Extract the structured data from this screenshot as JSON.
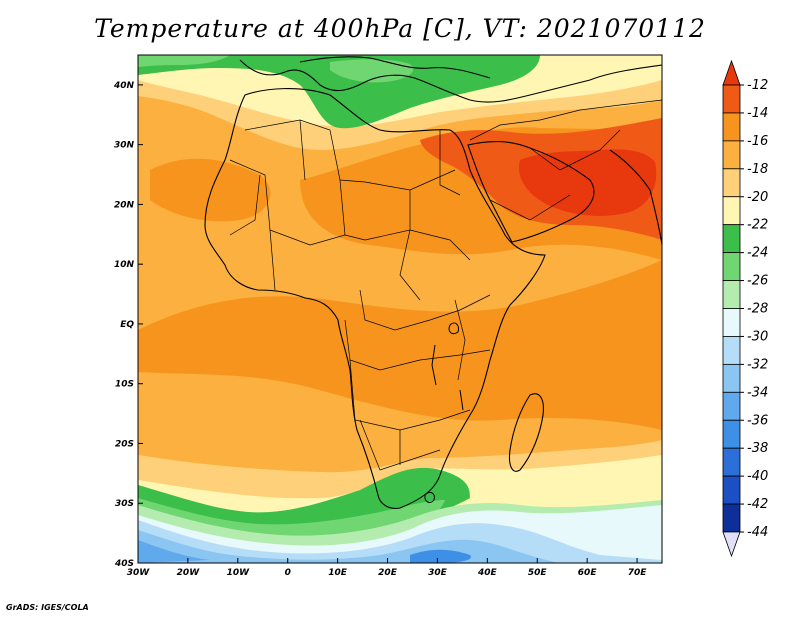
{
  "title": "Temperature at 400hPa [C], VT: 2021070112",
  "credit": "GrADS: IGES/COLA",
  "map": {
    "lon_range": [
      -30,
      75
    ],
    "lat_range": [
      -40,
      45
    ],
    "lat_ticks": [
      {
        "value": 40,
        "label": "40N"
      },
      {
        "value": 30,
        "label": "30N"
      },
      {
        "value": 20,
        "label": "20N"
      },
      {
        "value": 10,
        "label": "10N"
      },
      {
        "value": 0,
        "label": "EQ"
      },
      {
        "value": -10,
        "label": "10S"
      },
      {
        "value": -20,
        "label": "20S"
      },
      {
        "value": -30,
        "label": "30S"
      },
      {
        "value": -40,
        "label": "40S"
      }
    ],
    "lon_ticks": [
      {
        "value": -30,
        "label": "30W"
      },
      {
        "value": -20,
        "label": "20W"
      },
      {
        "value": -10,
        "label": "10W"
      },
      {
        "value": 0,
        "label": "0"
      },
      {
        "value": 10,
        "label": "10E"
      },
      {
        "value": 20,
        "label": "20E"
      },
      {
        "value": 30,
        "label": "30E"
      },
      {
        "value": 40,
        "label": "40E"
      },
      {
        "value": 50,
        "label": "50E"
      },
      {
        "value": 60,
        "label": "60E"
      },
      {
        "value": 70,
        "label": "70E"
      }
    ],
    "colors": {
      "ge_m12": "#e8380d",
      "m14_m12": "#f05a17",
      "m16_m14": "#f7941d",
      "m18_m16": "#fbb040",
      "m20_m18": "#fed07a",
      "m22_m20": "#fff6b3",
      "m24_m22": "#3cbe4a",
      "m26_m24": "#6fd672",
      "m28_m26": "#b4ecb0",
      "m30_m28": "#e8f9fb",
      "m32_m30": "#b6ddf8",
      "m34_m32": "#8bc6f3",
      "m36_m34": "#5fa9ec",
      "m38_m36": "#3e8fe6"
    }
  },
  "colorbar": {
    "labels": [
      "-12",
      "-14",
      "-16",
      "-18",
      "-20",
      "-22",
      "-24",
      "-26",
      "-28",
      "-30",
      "-32",
      "-34",
      "-36",
      "-38",
      "-40",
      "-42",
      "-44"
    ],
    "colors": [
      "#e8380d",
      "#f05a17",
      "#f7941d",
      "#fbb040",
      "#fed07a",
      "#fff6b3",
      "#3cbe4a",
      "#6fd672",
      "#b4ecb0",
      "#e8f9fb",
      "#b6ddf8",
      "#8bc6f3",
      "#5fa9ec",
      "#3e8fe6",
      "#2c6fd8",
      "#1d4fc4",
      "#0e2f9a",
      "#101070"
    ],
    "top_arrow_color": "#e8380d",
    "bottom_arrow_color": "#e0e0f8"
  }
}
